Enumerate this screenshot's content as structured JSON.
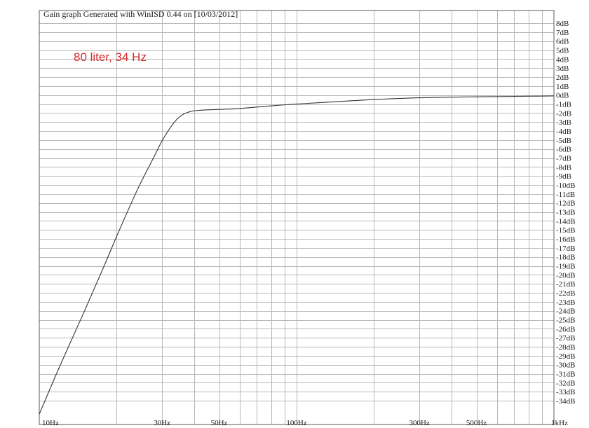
{
  "chart_data": {
    "type": "line",
    "title": "Gain graph Generated with WinISD 0.44 on [10/03/2012]",
    "annotation": "80 liter, 34 Hz",
    "annotation_color": "#d42a2a",
    "curve_color": "#333333",
    "grid_color": "#b8b8b8",
    "xlabel": "",
    "ylabel": "",
    "x_scale": "log",
    "xlim": [
      10,
      1000
    ],
    "ylim": [
      -35,
      8.5
    ],
    "grid": true,
    "x_tick_labels": [
      {
        "value": 10,
        "label": "10Hz"
      },
      {
        "value": 30,
        "label": "30Hz"
      },
      {
        "value": 50,
        "label": "50Hz"
      },
      {
        "value": 100,
        "label": "100Hz"
      },
      {
        "value": 300,
        "label": "300Hz"
      },
      {
        "value": 500,
        "label": "500Hz"
      },
      {
        "value": 1000,
        "label": "1kHz"
      }
    ],
    "y_ticks": [
      8,
      7,
      6,
      5,
      4,
      3,
      2,
      1,
      0,
      -1,
      -2,
      -3,
      -4,
      -5,
      -6,
      -7,
      -8,
      -9,
      -10,
      -11,
      -12,
      -13,
      -14,
      -15,
      -16,
      -17,
      -18,
      -19,
      -20,
      -21,
      -22,
      -23,
      -24,
      -25,
      -26,
      -27,
      -28,
      -29,
      -30,
      -31,
      -32,
      -33,
      -34
    ],
    "y_unit": "dB",
    "series": [
      {
        "x": [
          10,
          12,
          15,
          18,
          20,
          24,
          28,
          30,
          32,
          34,
          36,
          38,
          40,
          42,
          45,
          50,
          60,
          80,
          100,
          150,
          200,
          300,
          500,
          700,
          1000
        ],
        "y": [
          -35.5,
          -30.2,
          -24.0,
          -18.8,
          -15.7,
          -10.6,
          -6.8,
          -5.1,
          -3.8,
          -2.8,
          -2.2,
          -1.9,
          -1.75,
          -1.7,
          -1.65,
          -1.6,
          -1.5,
          -1.2,
          -1.0,
          -0.7,
          -0.5,
          -0.3,
          -0.2,
          -0.15,
          -0.1
        ]
      }
    ]
  }
}
